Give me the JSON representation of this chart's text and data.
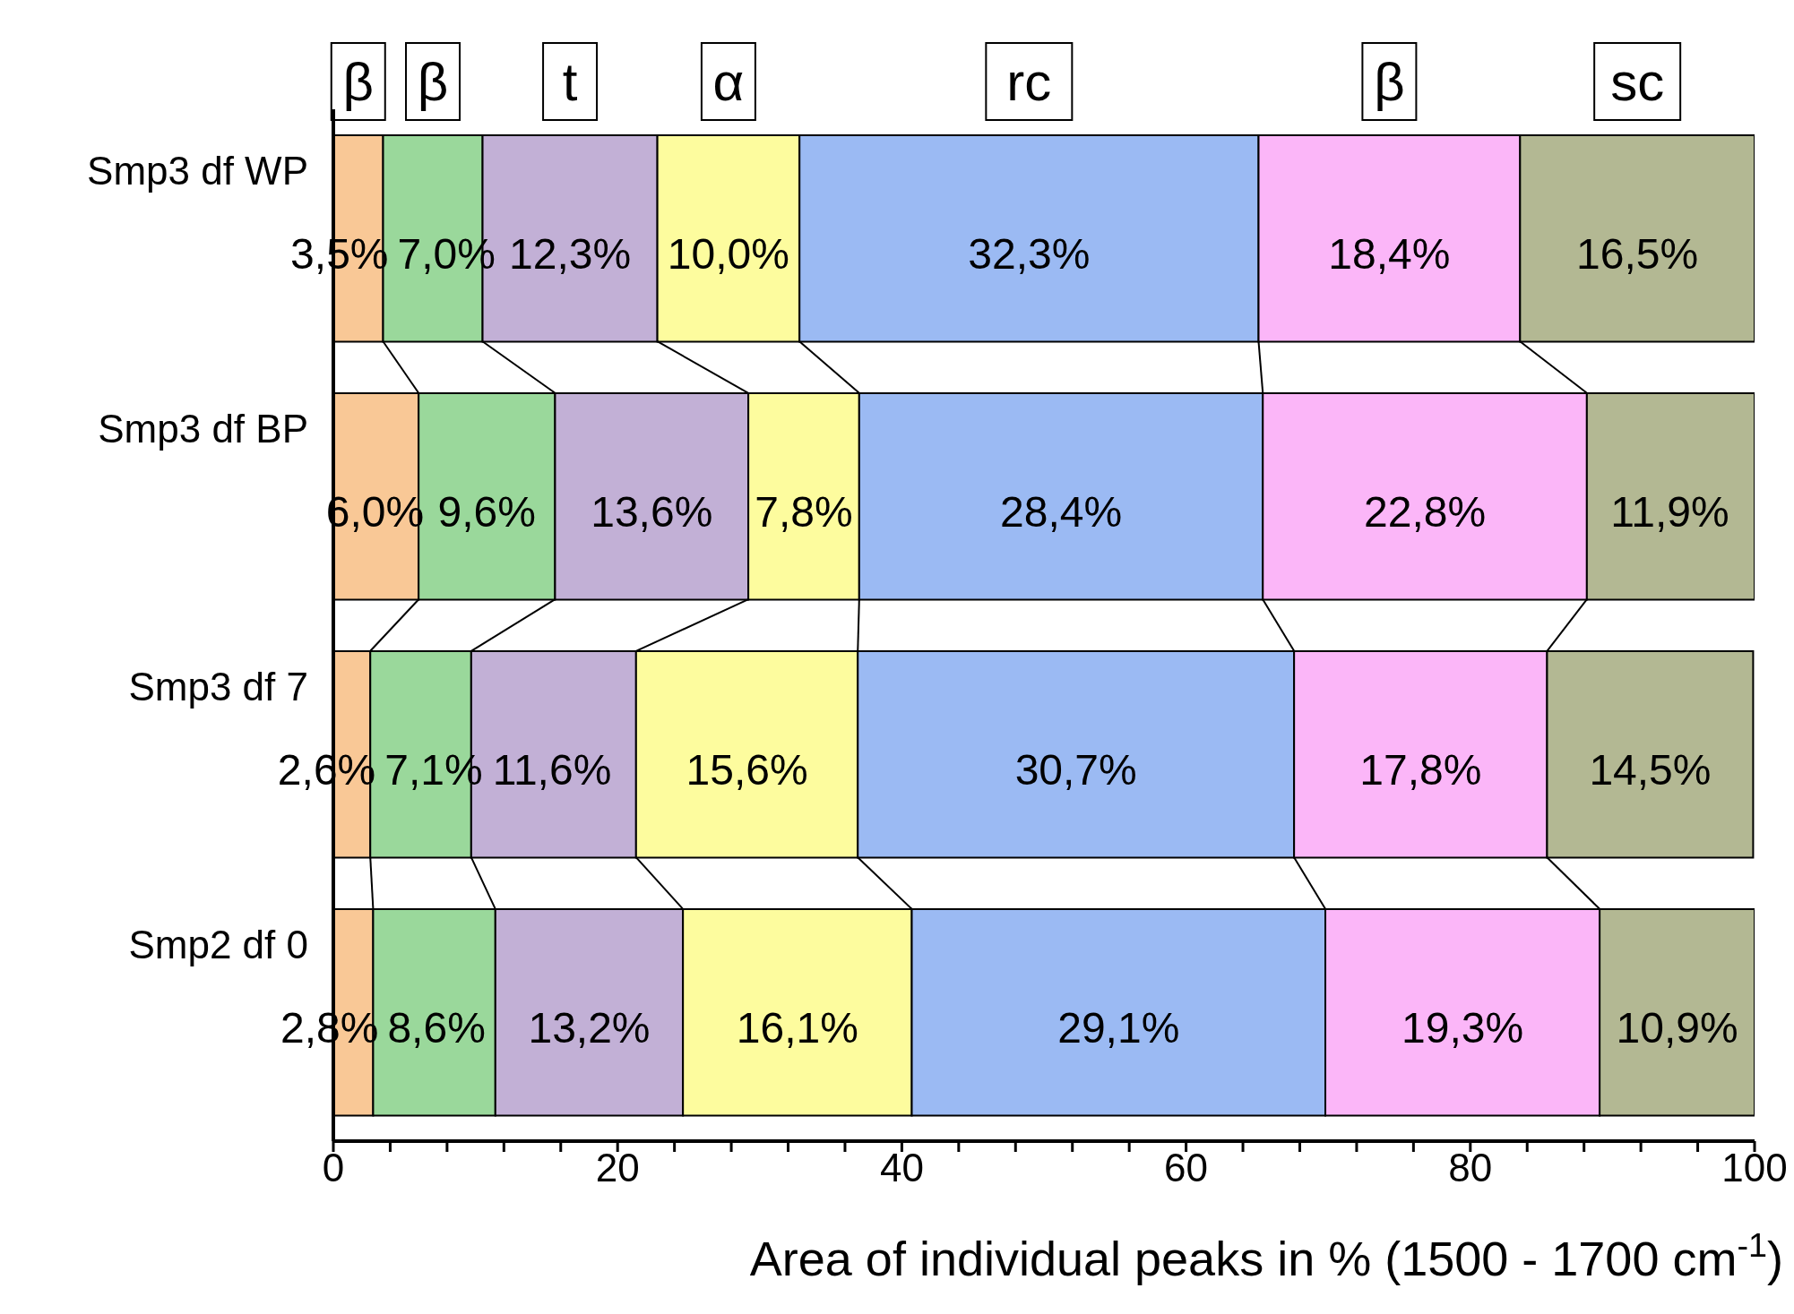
{
  "chart_data": {
    "type": "bar",
    "orientation": "horizontal",
    "stacked": true,
    "categories": [
      "Smp3 df WP",
      "Smp3 df BP",
      "Smp3 df 7",
      "Smp2 df 0"
    ],
    "series": [
      {
        "color": "#f9c896",
        "values": [
          3.5,
          6.0,
          2.6,
          2.8
        ],
        "value_labels": [
          "3,5%",
          "6,0%",
          "2,6%",
          "2,8%"
        ]
      },
      {
        "color": "#9ad89b",
        "values": [
          7.0,
          9.6,
          7.1,
          8.6
        ],
        "value_labels": [
          "7,0%",
          "9,6%",
          "7,1%",
          "8,6%"
        ]
      },
      {
        "color": "#c2b0d6",
        "values": [
          12.3,
          13.6,
          11.6,
          13.2
        ],
        "value_labels": [
          "12,3%",
          "13,6%",
          "11,6%",
          "13,2%"
        ]
      },
      {
        "color": "#fdfc9e",
        "values": [
          10.0,
          7.8,
          15.6,
          16.1
        ],
        "value_labels": [
          "10,0%",
          "7,8%",
          "15,6%",
          "16,1%"
        ]
      },
      {
        "color": "#9bbaf3",
        "values": [
          32.3,
          28.4,
          30.7,
          29.1
        ],
        "value_labels": [
          "32,3%",
          "28,4%",
          "30,7%",
          "29,1%"
        ]
      },
      {
        "color": "#fbb6f8",
        "values": [
          18.4,
          22.8,
          17.8,
          19.3
        ],
        "value_labels": [
          "18,4%",
          "22,8%",
          "17,8%",
          "19,3%"
        ]
      },
      {
        "color": "#b3b893",
        "values": [
          16.5,
          11.9,
          14.5,
          10.9
        ],
        "value_labels": [
          "16,5%",
          "11,9%",
          "14,5%",
          "10,9%"
        ]
      }
    ],
    "annotations": [
      "β",
      "β",
      "t",
      "α",
      "rc",
      "β",
      "sc"
    ],
    "xlim": [
      0,
      100
    ],
    "xticks": [
      0,
      {
        "value": 4,
        "label": null
      },
      {
        "value": 8,
        "label": null
      },
      {
        "value": 12,
        "label": null
      },
      {
        "value": 16,
        "label": null
      },
      20,
      {
        "value": 24,
        "label": null
      },
      {
        "value": 28,
        "label": null
      },
      {
        "value": 32,
        "label": null
      },
      {
        "value": 36,
        "label": null
      },
      40,
      {
        "value": 44,
        "label": null
      },
      {
        "value": 48,
        "label": null
      },
      {
        "value": 52,
        "label": null
      },
      {
        "value": 56,
        "label": null
      },
      60,
      {
        "value": 64,
        "label": null
      },
      {
        "value": 68,
        "label": null
      },
      {
        "value": 72,
        "label": null
      },
      {
        "value": 76,
        "label": null
      },
      80,
      {
        "value": 84,
        "label": null
      },
      {
        "value": 88,
        "label": null
      },
      {
        "value": 92,
        "label": null
      },
      {
        "value": 96,
        "label": null
      },
      100
    ],
    "xlabel": "Area of individual peaks in % (1500 - 1700 cm$^{-1}$)"
  }
}
